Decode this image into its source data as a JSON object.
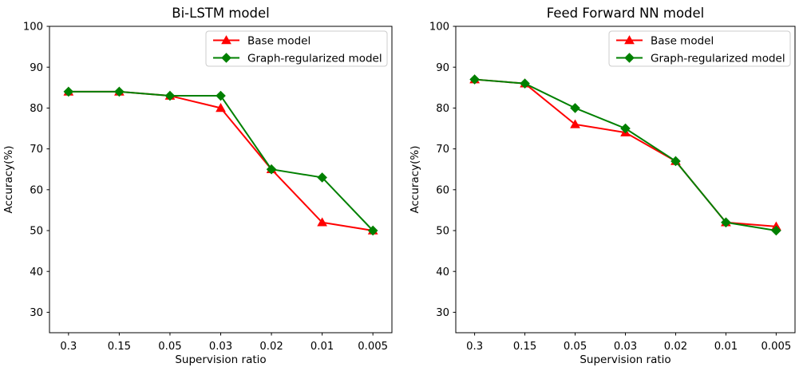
{
  "figure": {
    "background_color": "#ffffff",
    "frame_color": "#000000",
    "legend_border_color": "#cccccc"
  },
  "chart_data": [
    {
      "type": "line",
      "title": "Bi-LSTM model",
      "xlabel": "Supervision ratio",
      "ylabel": "Accuracy(%)",
      "categories": [
        "0.3",
        "0.15",
        "0.05",
        "0.03",
        "0.02",
        "0.01",
        "0.005"
      ],
      "yticks": [
        30,
        40,
        50,
        60,
        70,
        80,
        90,
        100
      ],
      "ylim": [
        25,
        100
      ],
      "grid": false,
      "legend_position": "upper right",
      "series": [
        {
          "name": "Base model",
          "color": "#ff0000",
          "marker": "triangle",
          "values": [
            84,
            84,
            83,
            80,
            65,
            52,
            50
          ]
        },
        {
          "name": "Graph-regularized model",
          "color": "#008000",
          "marker": "diamond",
          "values": [
            84,
            84,
            83,
            83,
            65,
            63,
            50
          ]
        }
      ]
    },
    {
      "type": "line",
      "title": "Feed Forward NN model",
      "xlabel": "Supervision ratio",
      "ylabel": "Accuracy(%)",
      "categories": [
        "0.3",
        "0.15",
        "0.05",
        "0.03",
        "0.02",
        "0.01",
        "0.005"
      ],
      "yticks": [
        30,
        40,
        50,
        60,
        70,
        80,
        90,
        100
      ],
      "ylim": [
        25,
        100
      ],
      "grid": false,
      "legend_position": "upper right",
      "series": [
        {
          "name": "Base model",
          "color": "#ff0000",
          "marker": "triangle",
          "values": [
            87,
            86,
            76,
            74,
            67,
            52,
            51
          ]
        },
        {
          "name": "Graph-regularized model",
          "color": "#008000",
          "marker": "diamond",
          "values": [
            87,
            86,
            80,
            75,
            67,
            52,
            50
          ]
        }
      ]
    }
  ]
}
